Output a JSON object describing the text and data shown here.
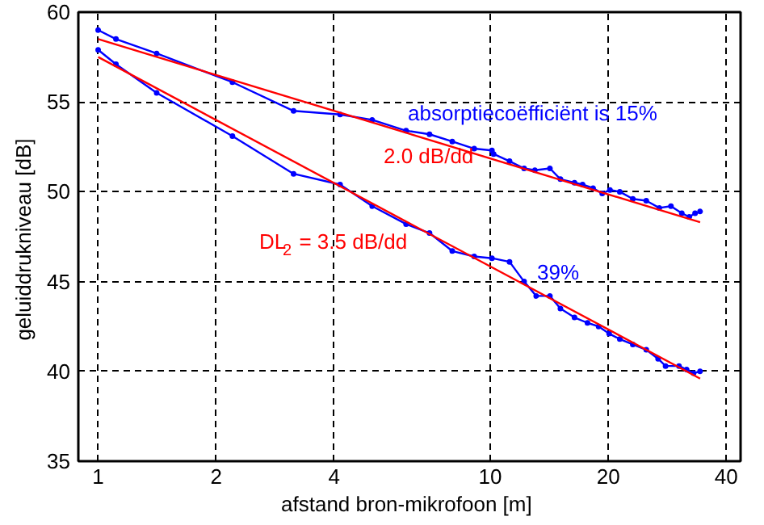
{
  "chart_data": {
    "type": "line",
    "xlabel": "afstand bron-mikrofoon  [m]",
    "ylabel": "geluiddrukniveau  [dB]",
    "log": "x",
    "xlim": [
      0.89,
      43.5
    ],
    "ylim": [
      35,
      60
    ],
    "xticks": [
      1,
      2,
      4,
      10,
      20,
      40
    ],
    "yticks": [
      35,
      40,
      45,
      50,
      55,
      60
    ],
    "grid": true,
    "line_style": "solid",
    "annotations": [
      "absorptiecoëfficiënt is  15%",
      "2.0 dB/dd",
      "DL$_{2}$ = 3.5 dB/dd",
      "39%"
    ],
    "series": [
      {
        "color": "#0000ff",
        "marker": "circle",
        "x": [
          1,
          1.11,
          1.41,
          2.2,
          3.15,
          4.14,
          5.0,
          6.1,
          7.0,
          8.0,
          9.1,
          10.1,
          10.2,
          11.2,
          12.2,
          13.0,
          14.2,
          15.1,
          16.4,
          17.2,
          18.3,
          19.3,
          20.2,
          21.4,
          23.1,
          25.0,
          27.0,
          28.9,
          30.8,
          32.2,
          33.3,
          34.3
        ],
        "values": [
          59.0,
          58.5,
          57.7,
          56.1,
          54.5,
          54.3,
          54.0,
          53.4,
          53.2,
          52.8,
          52.4,
          52.3,
          52.1,
          51.7,
          51.3,
          51.2,
          51.3,
          50.7,
          50.5,
          50.4,
          50.2,
          49.9,
          50.1,
          50.0,
          49.6,
          49.5,
          49.1,
          49.2,
          48.8,
          48.6,
          48.8,
          48.9
        ]
      },
      {
        "color": "#0000ff",
        "marker": "circle",
        "x": [
          1,
          1.11,
          1.41,
          2.2,
          3.15,
          4.14,
          5.0,
          6.1,
          7.0,
          8.0,
          9.1,
          10.1,
          11.2,
          12.2,
          13.1,
          14.2,
          15.1,
          16.4,
          17.7,
          18.9,
          20.1,
          21.4,
          23.1,
          25.0,
          26.8,
          28.0,
          30.3,
          31.7,
          33.0,
          34.3
        ],
        "values": [
          57.9,
          57.1,
          55.5,
          53.1,
          51.0,
          50.4,
          49.2,
          48.2,
          47.7,
          46.7,
          46.4,
          46.3,
          46.1,
          45.0,
          44.2,
          44.2,
          43.5,
          43.0,
          42.7,
          42.5,
          42.1,
          41.8,
          41.5,
          41.2,
          40.7,
          40.3,
          40.3,
          40.1,
          39.9,
          40.0
        ]
      },
      {
        "color": "#ff0000",
        "marker": "none",
        "x": [
          1,
          34.3
        ],
        "values": [
          58.5,
          48.3
        ]
      },
      {
        "color": "#ff0000",
        "marker": "none",
        "x": [
          1,
          34.3
        ],
        "values": [
          57.5,
          39.6
        ]
      }
    ]
  }
}
